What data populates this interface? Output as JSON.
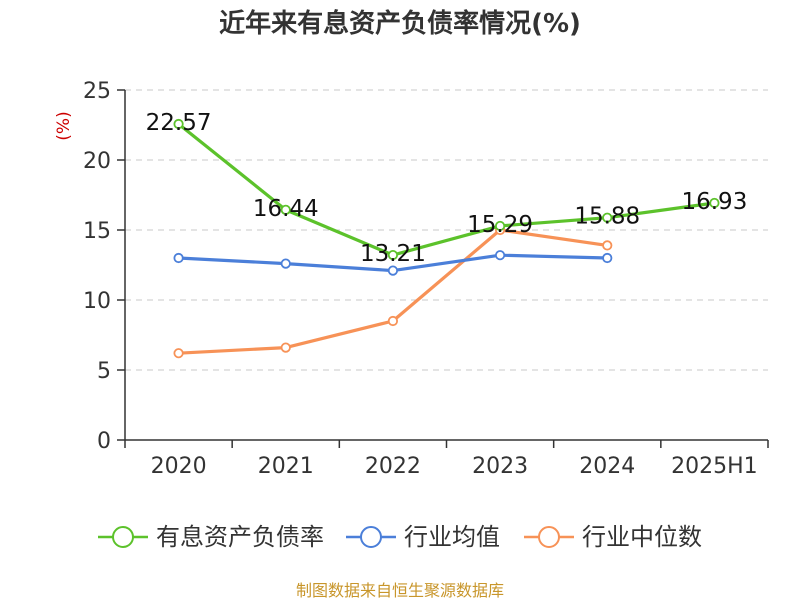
{
  "chart_data": {
    "type": "line",
    "title": "近年来有息资产负债率情况(%)",
    "ylabel": "(%)",
    "xlabel": "",
    "categories": [
      "2020",
      "2021",
      "2022",
      "2023",
      "2024",
      "2025H1"
    ],
    "ylim": [
      0,
      25
    ],
    "yticks": [
      "0",
      "5",
      "10",
      "15",
      "20",
      "25"
    ],
    "grid": true,
    "legend_position": "bottom",
    "series": [
      {
        "name": "有息资产负债率",
        "color": "#5cc22b",
        "values": [
          22.57,
          16.44,
          13.21,
          15.29,
          15.88,
          16.93
        ],
        "labels": [
          "22.57",
          "16.44",
          "13.21",
          "15.29",
          "15.88",
          "16.93"
        ]
      },
      {
        "name": "行业均值",
        "color": "#4b7fd9",
        "values": [
          13.0,
          12.6,
          12.1,
          13.2,
          13.0,
          null
        ]
      },
      {
        "name": "行业中位数",
        "color": "#f79257",
        "values": [
          6.2,
          6.6,
          8.5,
          15.0,
          13.9,
          null
        ]
      }
    ]
  },
  "source": "制图数据来自恒生聚源数据库"
}
